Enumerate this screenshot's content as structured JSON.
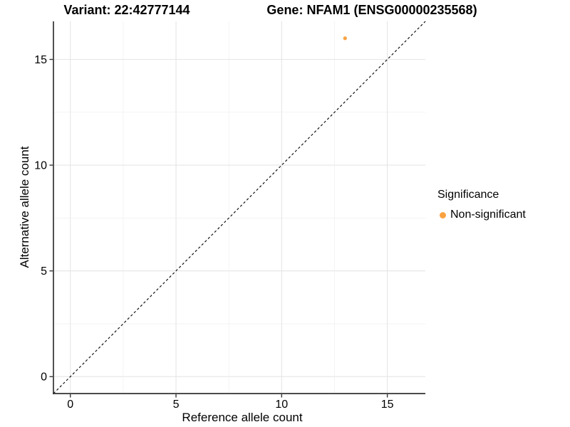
{
  "chart_data": {
    "type": "scatter",
    "titles": {
      "left": "Variant: 22:42777144",
      "right": "Gene: NFAM1 (ENSG00000235568)"
    },
    "xlabel": "Reference allele count",
    "ylabel": "Alternative allele count",
    "xlim": [
      -0.8,
      16.8
    ],
    "ylim": [
      -0.8,
      16.8
    ],
    "x_ticks": [
      0,
      5,
      10,
      15
    ],
    "y_ticks": [
      0,
      5,
      10,
      15
    ],
    "grid": {
      "start": 0,
      "end": 15,
      "major_step": 5,
      "minor_step": 2.5,
      "major_color": "#e5e5e5",
      "minor_color": "#f1f1f1"
    },
    "identity_line": {
      "slope": 1,
      "intercept": 0,
      "style": "dashed",
      "color": "#000000"
    },
    "points": [
      {
        "x": 13,
        "y": 16,
        "series": "Non-significant"
      }
    ],
    "point_radius": 2.6,
    "axis_color": "#333333",
    "tick_label_color": "#000000",
    "legend": {
      "title": "Significance",
      "position": "right",
      "items": [
        {
          "label": "Non-significant",
          "color": "#F9A242"
        }
      ]
    }
  }
}
